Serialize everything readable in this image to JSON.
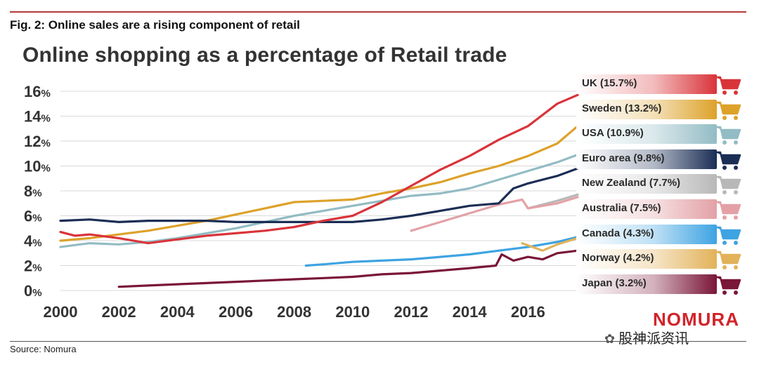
{
  "figure_title": "Fig. 2: Online sales are a rising component of retail",
  "source": "Source: Nomura",
  "brand": "NOMURA",
  "watermark": "股神派资讯",
  "chart_data": {
    "type": "line",
    "title": "Online shopping as a percentage of Retail trade",
    "xlabel": "",
    "ylabel": "",
    "xlim": [
      2000,
      2017.7
    ],
    "ylim": [
      0,
      16
    ],
    "x_ticks": [
      "2000",
      "2002",
      "2004",
      "2006",
      "2008",
      "2010",
      "2012",
      "2014",
      "2016"
    ],
    "y_ticks": [
      "0%",
      "2%",
      "4%",
      "6%",
      "8%",
      "10%",
      "12%",
      "14%",
      "16%"
    ],
    "grid": true,
    "legend_position": "right",
    "series": [
      {
        "name": "UK",
        "legend_label": "UK (15.7%)",
        "color": "#d9343a",
        "x": [
          2000,
          2000.5,
          2001,
          2002,
          2003,
          2004,
          2005,
          2006,
          2007,
          2008,
          2009,
          2010,
          2011,
          2012,
          2013,
          2014,
          2015,
          2016,
          2017,
          2017.7
        ],
        "y": [
          4.7,
          4.4,
          4.5,
          4.2,
          3.8,
          4.1,
          4.4,
          4.6,
          4.8,
          5.1,
          5.6,
          6.0,
          7.1,
          8.4,
          9.7,
          10.8,
          12.1,
          13.2,
          15.0,
          15.7
        ]
      },
      {
        "name": "Sweden",
        "legend_label": "Sweden (13.2%)",
        "color": "#dda22a",
        "x": [
          2000,
          2001,
          2002,
          2003,
          2004,
          2005,
          2006,
          2007,
          2008,
          2009,
          2010,
          2011,
          2012,
          2013,
          2014,
          2015,
          2016,
          2017,
          2017.7
        ],
        "y": [
          4.0,
          4.2,
          4.5,
          4.8,
          5.2,
          5.6,
          6.1,
          6.6,
          7.1,
          7.2,
          7.3,
          7.8,
          8.2,
          8.7,
          9.4,
          10.0,
          10.8,
          11.8,
          13.2
        ]
      },
      {
        "name": "USA",
        "legend_label": "USA (10.9%)",
        "color": "#93bcc4",
        "x": [
          2000,
          2001,
          2002,
          2003,
          2004,
          2005,
          2006,
          2007,
          2008,
          2009,
          2010,
          2011,
          2012,
          2013,
          2014,
          2015,
          2016,
          2017,
          2017.7
        ],
        "y": [
          3.5,
          3.8,
          3.7,
          3.9,
          4.2,
          4.6,
          5.0,
          5.5,
          6.0,
          6.4,
          6.8,
          7.2,
          7.6,
          7.8,
          8.2,
          8.9,
          9.6,
          10.3,
          10.9
        ]
      },
      {
        "name": "Euro area",
        "legend_label": "Euro area (9.8%)",
        "color": "#1b2e55",
        "x": [
          2000,
          2001,
          2002,
          2003,
          2004,
          2005,
          2006,
          2007,
          2008,
          2009,
          2010,
          2011,
          2012,
          2013,
          2014,
          2015,
          2015.5,
          2016,
          2017,
          2017.7
        ],
        "y": [
          5.6,
          5.7,
          5.5,
          5.6,
          5.6,
          5.6,
          5.5,
          5.5,
          5.5,
          5.5,
          5.5,
          5.7,
          6.0,
          6.4,
          6.8,
          7.0,
          8.2,
          8.6,
          9.2,
          9.8
        ]
      },
      {
        "name": "New Zealand",
        "legend_label": "New Zealand (7.7%)",
        "color": "#b8b8b8",
        "x": [
          2016,
          2016.5,
          2017,
          2017.7
        ],
        "y": [
          6.6,
          6.9,
          7.2,
          7.7
        ]
      },
      {
        "name": "Australia",
        "legend_label": "Australia (7.5%)",
        "color": "#e3a1a6",
        "x": [
          2012,
          2013,
          2014,
          2015,
          2015.8,
          2016,
          2017,
          2017.7
        ],
        "y": [
          4.8,
          5.5,
          6.2,
          6.9,
          7.3,
          6.6,
          7.0,
          7.5
        ]
      },
      {
        "name": "Canada",
        "legend_label": "Canada (4.3%)",
        "color": "#3ea3e2",
        "x": [
          2008.4,
          2009,
          2010,
          2011,
          2012,
          2013,
          2014,
          2015,
          2016,
          2017,
          2017.7
        ],
        "y": [
          2.0,
          2.1,
          2.3,
          2.4,
          2.5,
          2.7,
          2.9,
          3.2,
          3.5,
          3.9,
          4.3
        ]
      },
      {
        "name": "Norway",
        "legend_label": "Norway (4.2%)",
        "color": "#e2b25a",
        "x": [
          2015.8,
          2016.5,
          2017,
          2017.7
        ],
        "y": [
          3.8,
          3.2,
          3.7,
          4.2
        ]
      },
      {
        "name": "Japan",
        "legend_label": "Japan (3.2%)",
        "color": "#7a1638",
        "x": [
          2002,
          2003,
          2004,
          2005,
          2006,
          2007,
          2008,
          2009,
          2010,
          2011,
          2012,
          2013,
          2014,
          2014.9,
          2015.1,
          2015.5,
          2016,
          2016.5,
          2017,
          2017.7
        ],
        "y": [
          0.3,
          0.4,
          0.5,
          0.6,
          0.7,
          0.8,
          0.9,
          1.0,
          1.1,
          1.3,
          1.4,
          1.6,
          1.8,
          2.0,
          2.9,
          2.4,
          2.7,
          2.5,
          3.0,
          3.2
        ]
      }
    ]
  }
}
